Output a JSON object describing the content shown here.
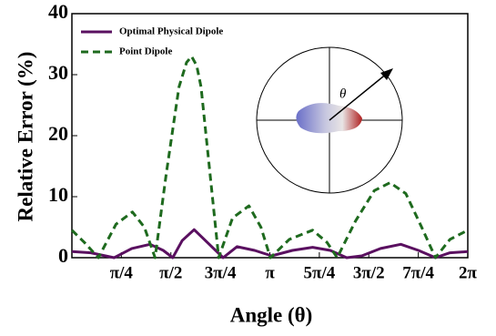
{
  "chart_data": {
    "type": "line",
    "x_label": "Angle (θ)",
    "y_label": "Relative Error (%)",
    "annotations": [
      "θ"
    ],
    "xlim": [
      0,
      6.283
    ],
    "ylim": [
      0,
      40
    ],
    "xticks": [
      {
        "value": 0.785,
        "label": "π/4"
      },
      {
        "value": 1.571,
        "label": "π/2"
      },
      {
        "value": 2.356,
        "label": "3π/4"
      },
      {
        "value": 3.142,
        "label": "π"
      },
      {
        "value": 3.927,
        "label": "5π/4"
      },
      {
        "value": 4.712,
        "label": "3π/2"
      },
      {
        "value": 5.498,
        "label": "7π/4"
      },
      {
        "value": 6.283,
        "label": "2π"
      }
    ],
    "yticks": [
      0,
      10,
      20,
      30,
      40
    ],
    "legend": "upper left",
    "series": [
      {
        "name": "Optimal Physical Dipole",
        "color": "#5a1060",
        "dash": false,
        "x": [
          0,
          0.3,
          0.67,
          0.95,
          1.24,
          1.45,
          1.6,
          1.75,
          1.94,
          2.15,
          2.4,
          2.62,
          2.9,
          3.17,
          3.5,
          3.82,
          4.1,
          4.36,
          4.6,
          4.9,
          5.22,
          5.5,
          5.77,
          6.0,
          6.283
        ],
        "values": [
          1,
          0.8,
          0,
          1.5,
          2.2,
          1.2,
          0,
          2.8,
          4.6,
          2.5,
          0,
          1.8,
          1.2,
          0.3,
          1.2,
          1.7,
          1.2,
          0,
          0.3,
          1.5,
          2.2,
          1.2,
          0,
          0.8,
          1
        ]
      },
      {
        "name": "Point Dipole",
        "color": "#1e6a1e",
        "dash": true,
        "x": [
          0,
          0.2,
          0.42,
          0.7,
          0.96,
          1.15,
          1.32,
          1.5,
          1.7,
          1.82,
          1.9,
          1.98,
          2.05,
          2.2,
          2.33,
          2.55,
          2.81,
          3.0,
          3.15,
          3.45,
          3.82,
          4.05,
          4.21,
          4.5,
          4.8,
          5.05,
          5.3,
          5.55,
          5.77,
          6.0,
          6.283
        ],
        "values": [
          4.5,
          2.5,
          0,
          5.5,
          7.5,
          5,
          0,
          14,
          28,
          32,
          33,
          31.5,
          28,
          13,
          0,
          6.5,
          8.5,
          5,
          0,
          3,
          4.5,
          2.5,
          0,
          6,
          11,
          12.3,
          10.5,
          5,
          0,
          3,
          4.5
        ]
      }
    ]
  }
}
